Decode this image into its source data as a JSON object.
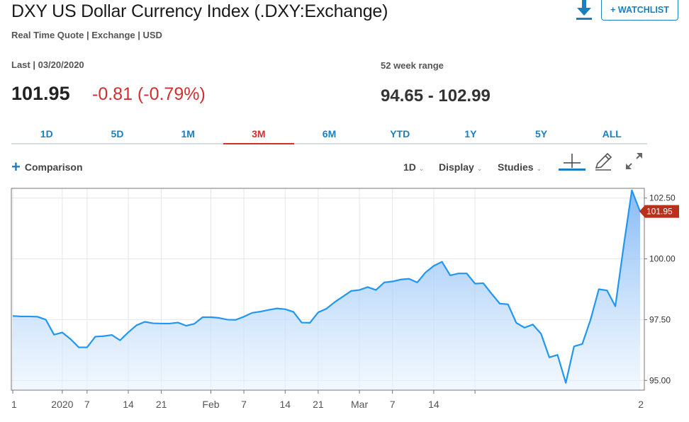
{
  "header": {
    "title": "DXY US Dollar Currency Index (.DXY:Exchange)",
    "subtitle": "Real Time Quote | Exchange | USD",
    "watchlist_label": "+ WATCHLIST",
    "download_icon": "download-icon"
  },
  "quote": {
    "last_label": "Last | 03/20/2020",
    "last_price": "101.95",
    "change": "-0.81 (-0.79%)",
    "range_label": "52 week range",
    "range_value": "94.65 - 102.99"
  },
  "tabs": [
    {
      "label": "1D",
      "active": false
    },
    {
      "label": "5D",
      "active": false
    },
    {
      "label": "1M",
      "active": false
    },
    {
      "label": "3M",
      "active": true
    },
    {
      "label": "6M",
      "active": false
    },
    {
      "label": "YTD",
      "active": false
    },
    {
      "label": "1Y",
      "active": false
    },
    {
      "label": "5Y",
      "active": false
    },
    {
      "label": "ALL",
      "active": false
    }
  ],
  "toolbar": {
    "comparison_label": "Comparison",
    "interval_label": "1D",
    "display_label": "Display",
    "studies_label": "Studies",
    "icons": [
      "crosshair-icon",
      "pencil-icon",
      "expand-icon"
    ]
  },
  "colors": {
    "accent": "#1a7fc1",
    "negative": "#d32f2f",
    "line": "#2196f3",
    "flag": "#b8311c"
  },
  "chart_data": {
    "type": "area",
    "title": "",
    "xlabel": "",
    "ylabel": "",
    "ylim": [
      94.6,
      102.9
    ],
    "y_ticks": [
      "95.00",
      "97.50",
      "100.00",
      "102.50"
    ],
    "y_tick_values": [
      95,
      97.5,
      100,
      102.5
    ],
    "x_ticks": [
      "1",
      "2020",
      "7",
      "14",
      "21",
      "Feb",
      "7",
      "14",
      "21",
      "Mar",
      "7",
      "14",
      "2"
    ],
    "x_tick_index": [
      0,
      6,
      9,
      14,
      18,
      24,
      28,
      33,
      37,
      42,
      46,
      51,
      56
    ],
    "current_label": "101.95",
    "grid": true,
    "series": [
      {
        "values": [
          97.65,
          97.63,
          97.63,
          97.62,
          97.5,
          96.88,
          96.97,
          96.7,
          96.36,
          96.36,
          96.8,
          96.82,
          96.87,
          96.65,
          96.98,
          97.27,
          97.41,
          97.35,
          97.34,
          97.34,
          97.38,
          97.25,
          97.33,
          97.6,
          97.6,
          97.57,
          97.5,
          97.49,
          97.62,
          97.78,
          97.83,
          97.9,
          97.96,
          97.93,
          97.82,
          97.38,
          97.37,
          97.8,
          97.95,
          98.22,
          98.45,
          98.68,
          98.72,
          98.84,
          98.72,
          99.03,
          99.07,
          99.15,
          99.18,
          99.03,
          99.44,
          99.71,
          99.88,
          99.32,
          99.4,
          99.4,
          98.98,
          99.0,
          98.57,
          98.16,
          98.13,
          97.37,
          97.17,
          97.3,
          96.92,
          95.95,
          96.05,
          94.9,
          96.4,
          96.5,
          97.5,
          98.75,
          98.7,
          98.05,
          100.5,
          102.82,
          101.95
        ]
      }
    ]
  }
}
